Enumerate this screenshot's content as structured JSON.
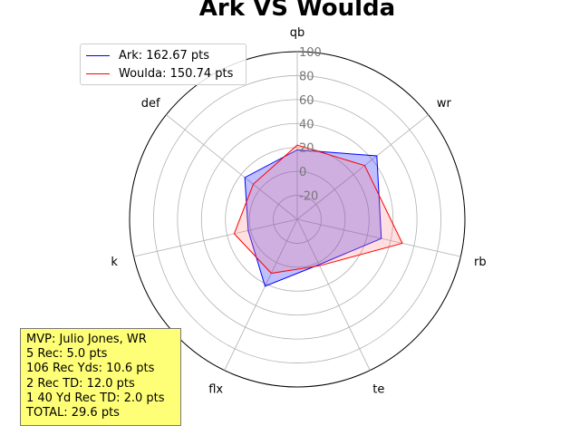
{
  "chart_data": {
    "type": "radar",
    "title": "Ark VS Woulda",
    "axes": [
      "qb",
      "wr",
      "rb",
      "te",
      "flx",
      "k",
      "def"
    ],
    "r_ticks": [
      "-20",
      "0",
      "20",
      "40",
      "60",
      "80",
      "100"
    ],
    "r_tick_values": [
      -20,
      0,
      20,
      40,
      60,
      80,
      100
    ],
    "rlim": [
      -40,
      100
    ],
    "grid": true,
    "legend_location": "upper-left",
    "series": [
      {
        "name": "Ark: 162.67 pts",
        "color": "#0000ff",
        "fill": "#0000ff",
        "values": [
          18,
          45,
          32,
          2,
          22,
          2,
          16
        ]
      },
      {
        "name": "Woulda: 150.74 pts",
        "color": "#ff0000",
        "fill": "#ff7f7f",
        "values": [
          22,
          32,
          50,
          3,
          10,
          14,
          7
        ]
      }
    ]
  },
  "mvp_box": {
    "lines": [
      "MVP: Julio Jones, WR",
      "5 Rec: 5.0 pts",
      "106 Rec Yds: 10.6 pts",
      "2 Rec TD: 12.0 pts",
      "1 40 Yd Rec TD: 2.0 pts",
      "TOTAL: 29.6 pts"
    ]
  }
}
